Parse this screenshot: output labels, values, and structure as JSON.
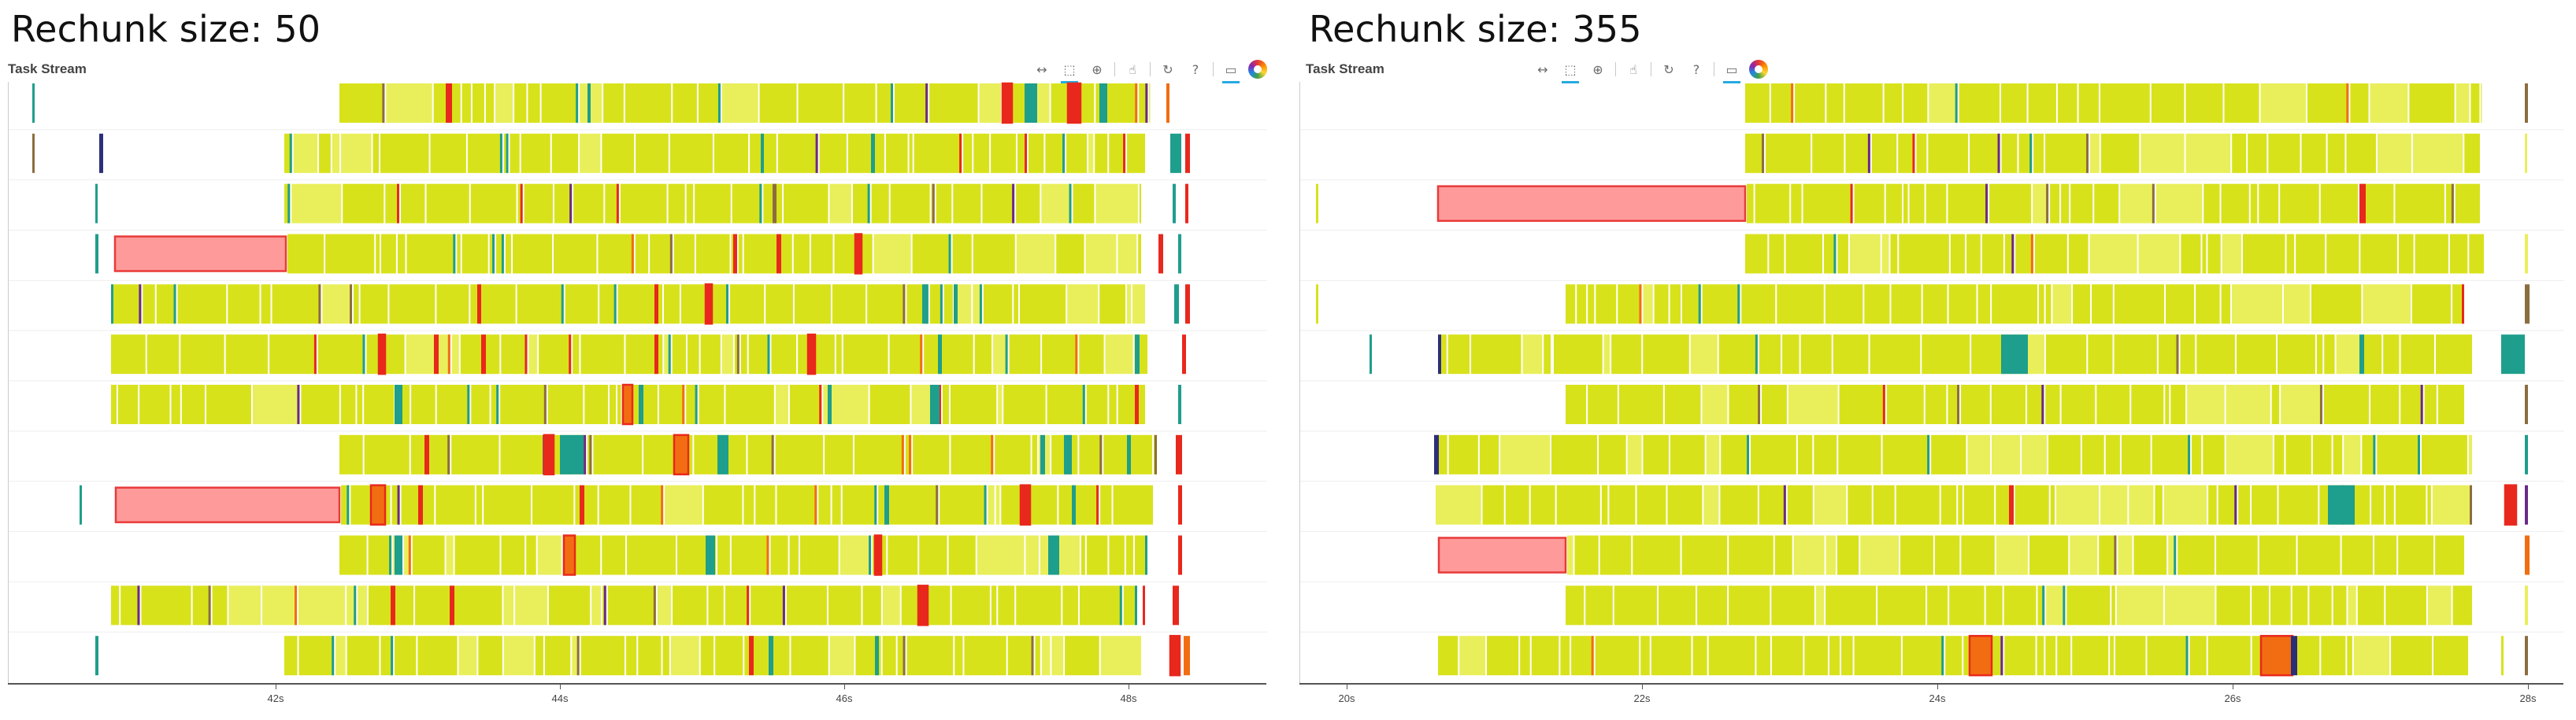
{
  "panels": [
    {
      "heading": "Rechunk size: 50",
      "subtitle": "Task Stream",
      "toolbar": [
        "pan-icon",
        "box-zoom-icon",
        "wheel-zoom-icon",
        "tap-icon",
        "reset-icon",
        "help-icon",
        "hover-icon",
        "bokeh-logo-icon"
      ],
      "ticks": [
        {
          "label": "42s",
          "value": 42
        },
        {
          "label": "44s",
          "value": 44
        },
        {
          "label": "46s",
          "value": 46
        },
        {
          "label": "48s",
          "value": 48
        }
      ]
    },
    {
      "heading": "Rechunk size: 355",
      "subtitle": "Task Stream",
      "toolbar": [
        "pan-icon",
        "box-zoom-icon",
        "wheel-zoom-icon",
        "tap-icon",
        "reset-icon",
        "help-icon",
        "hover-icon",
        "bokeh-logo-icon"
      ],
      "ticks": [
        {
          "label": "20s",
          "value": 20
        },
        {
          "label": "22s",
          "value": 22
        },
        {
          "label": "24s",
          "value": 24
        },
        {
          "label": "26s",
          "value": 26
        },
        {
          "label": "28s",
          "value": 28
        }
      ]
    }
  ],
  "colors": {
    "task": "#d8e21b",
    "task_light": "#e9ef5a",
    "transfer": "#ff9a9a",
    "transfer_border": "#e83a3a",
    "red": "#e8281c",
    "orange": "#f26d12",
    "teal": "#1e9e8c",
    "navy": "#2b2f7a",
    "brown": "#8c6d3f",
    "purple": "#6a2a86"
  }
}
